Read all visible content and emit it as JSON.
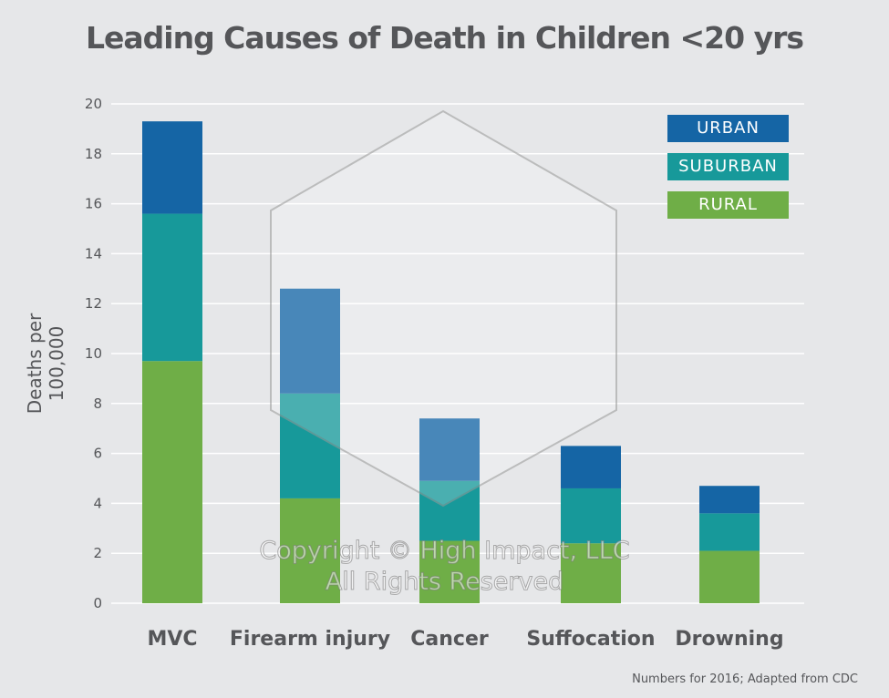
{
  "chart_data": {
    "type": "bar",
    "stacked": true,
    "title": "Leading Causes of Death in Children <20 yrs",
    "xlabel": "",
    "ylabel": "Deaths per 100,000",
    "ylim": [
      0,
      20
    ],
    "yticks": [
      "0",
      "2",
      "4",
      "6",
      "8",
      "10",
      "12",
      "14",
      "16",
      "18",
      "20"
    ],
    "grid": true,
    "legend_position": "top-right",
    "categories": [
      "MVC",
      "Firearm injury",
      "Cancer",
      "Suffocation",
      "Drowning"
    ],
    "series": [
      {
        "name": "RURAL",
        "color": "#6fae47",
        "values": [
          9.7,
          4.2,
          2.5,
          2.4,
          2.1
        ]
      },
      {
        "name": "SUBURBAN",
        "color": "#17999a",
        "values": [
          5.9,
          4.2,
          2.4,
          2.2,
          1.5
        ]
      },
      {
        "name": "URBAN",
        "color": "#1565a5",
        "values": [
          3.7,
          4.2,
          2.5,
          1.7,
          1.1
        ]
      }
    ],
    "footnote": "Numbers for 2016; Adapted from CDC"
  },
  "watermark": [
    "Copyright © High Impact, LLC",
    "All Rights Reserved"
  ]
}
